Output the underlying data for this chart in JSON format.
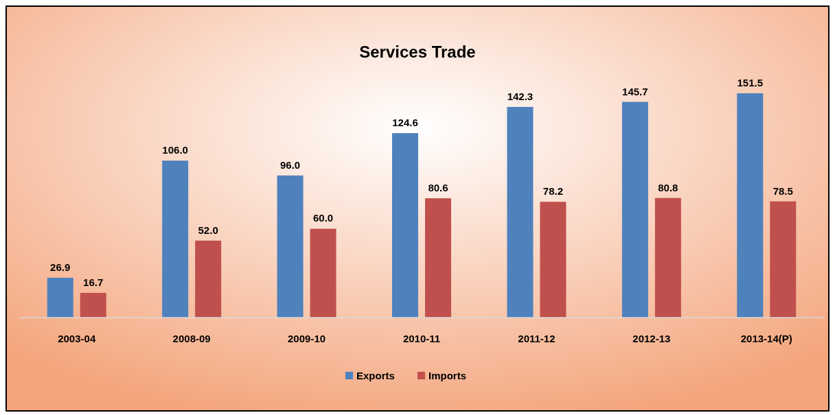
{
  "chart_data": {
    "type": "bar",
    "title": "Services Trade",
    "categories": [
      "2003-04",
      "2008-09",
      "2009-10",
      "2010-11",
      "2011-12",
      "2012-13",
      "2013-14(P)"
    ],
    "series": [
      {
        "name": "Exports",
        "color": "#4f81bd",
        "values": [
          26.9,
          106.0,
          96.0,
          124.6,
          142.3,
          145.7,
          151.5
        ],
        "value_labels": [
          "26.9",
          "106.0",
          "96.0",
          "124.6",
          "142.3",
          "145.7",
          "151.5"
        ]
      },
      {
        "name": "Imports",
        "color": "#c0504d",
        "values": [
          16.7,
          52.0,
          60.0,
          80.6,
          78.2,
          80.8,
          78.5
        ],
        "value_labels": [
          "16.7",
          "52.0",
          "60.0",
          "80.6",
          "78.2",
          "80.8",
          "78.5"
        ]
      }
    ],
    "legend": "bottom"
  }
}
